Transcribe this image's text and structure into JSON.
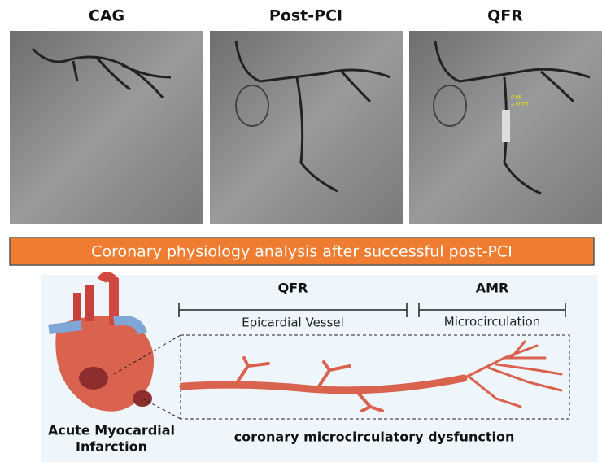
{
  "panels": [
    {
      "title": "CAG"
    },
    {
      "title": "Post-PCI"
    },
    {
      "title": "QFR",
      "annotations": [
        "0.98",
        "2.5mm"
      ]
    }
  ],
  "banner": "Coronary physiology analysis after successful post-PCI",
  "diagram": {
    "segments": [
      {
        "title": "QFR",
        "label": "Epicardial Vessel"
      },
      {
        "title": "AMR",
        "label": "Microcirculation"
      }
    ],
    "heart_label": [
      "Acute Myocardial",
      "Infarction"
    ],
    "caption": "coronary microcirculatory dysfunction"
  }
}
